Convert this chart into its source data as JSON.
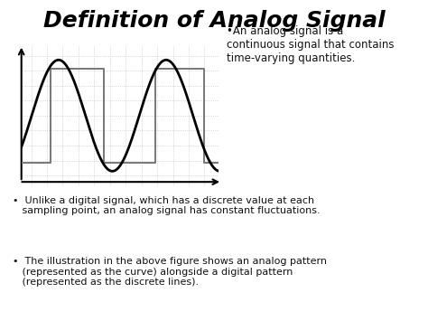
{
  "title": "Definition of Analog Signal",
  "title_fontsize": 18,
  "title_style": "italic",
  "title_weight": "bold",
  "background_color": "#ffffff",
  "annotation_text": "•An analog signal is a\ncontinuous signal that contains\ntime-varying quantities.",
  "bullet1": "•  Unlike a digital signal, which has a discrete value at each\n   sampling point, an analog signal has constant fluctuations.",
  "bullet2": "•  The illustration in the above figure shows an analog pattern\n   (represented as the curve) alongside a digital pattern\n   (represented as the discrete lines).",
  "grid_color": "#bbbbbb",
  "signal_color": "#000000",
  "digital_color": "#777777",
  "annotation_fontsize": 8.5,
  "body_fontsize": 8.0
}
